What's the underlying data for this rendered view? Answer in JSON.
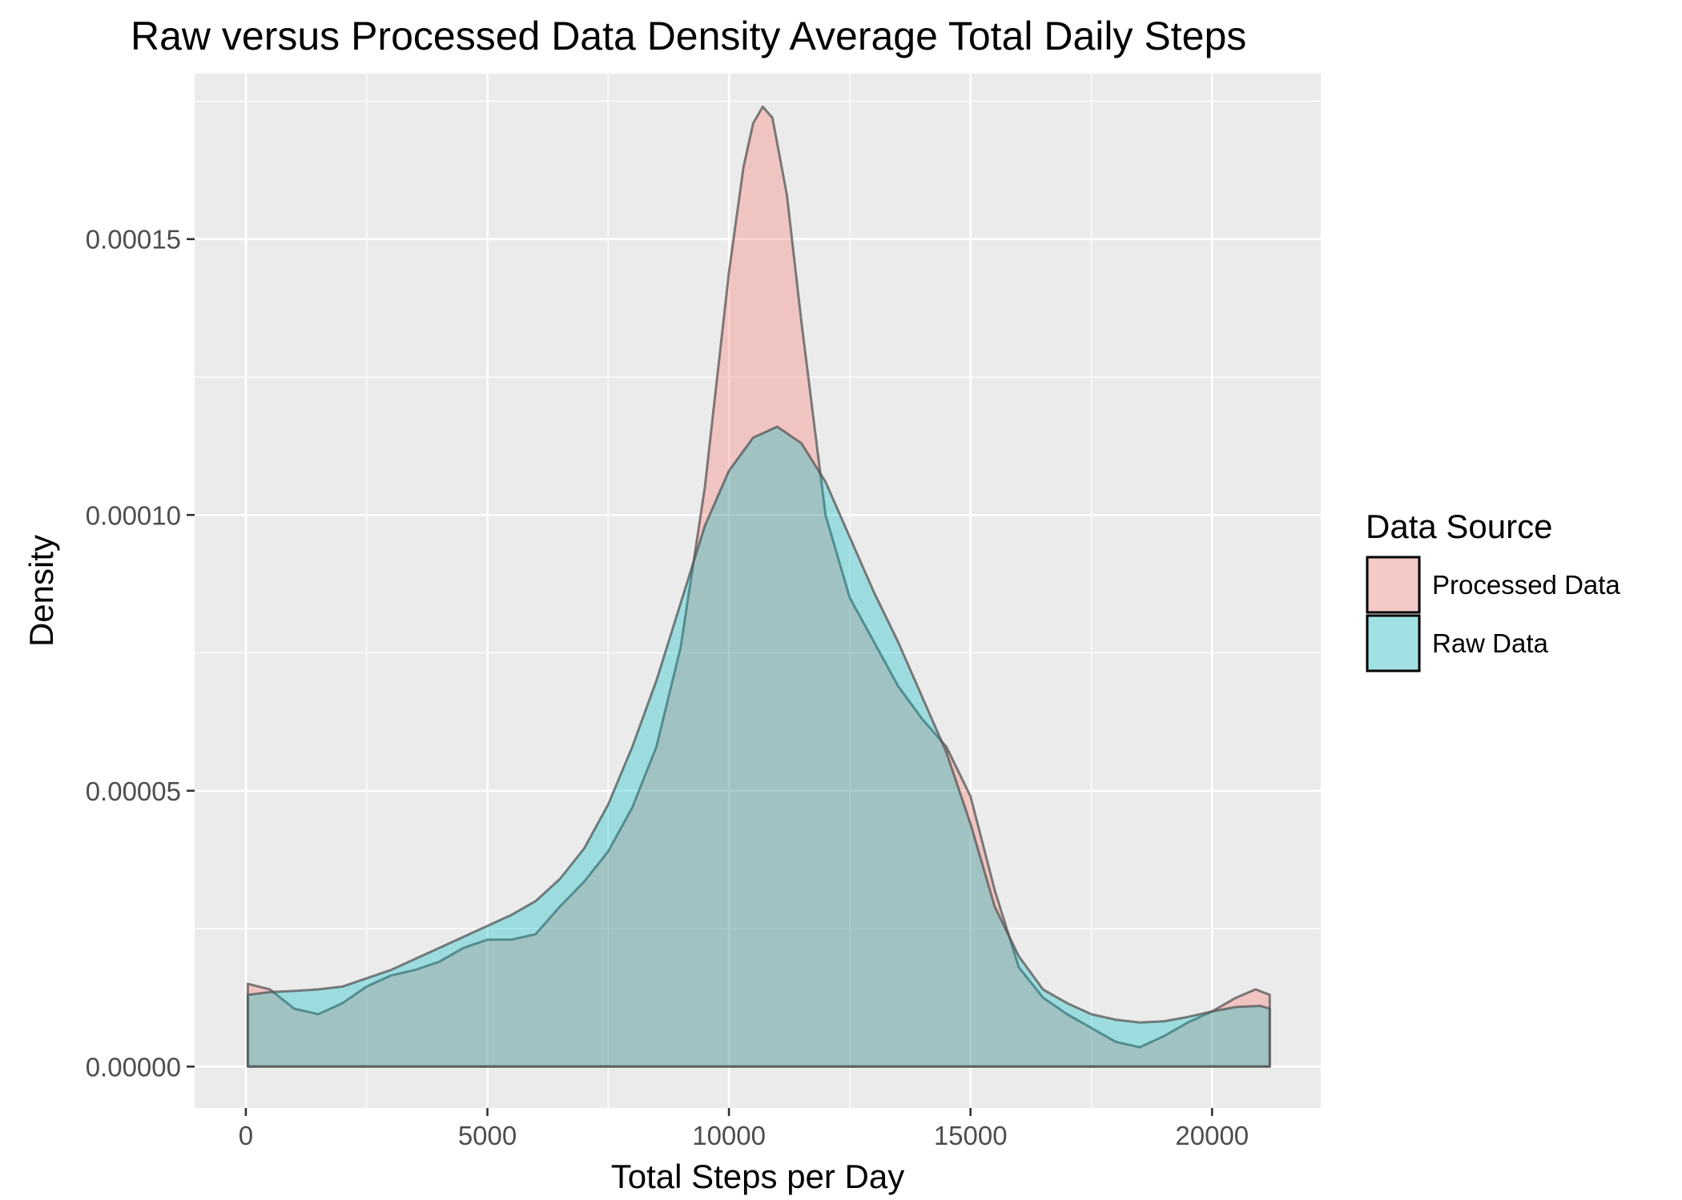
{
  "chart_data": {
    "type": "area",
    "title": "Raw versus Processed Data Density Average Total Daily Steps",
    "xlabel": "Total Steps per Day",
    "ylabel": "Density",
    "xlim": [
      -1060,
      22250
    ],
    "ylim": [
      -7.5e-06,
      0.00018
    ],
    "x_ticks": [
      0,
      5000,
      10000,
      15000,
      20000
    ],
    "x_tick_labels": [
      "0",
      "5000",
      "10000",
      "15000",
      "20000"
    ],
    "y_ticks": [
      0,
      5e-05,
      0.0001,
      0.00015
    ],
    "y_tick_labels": [
      "0.00000",
      "0.00005",
      "0.00010",
      "0.00015"
    ],
    "grid": true,
    "legend": {
      "title": "Data Source",
      "position": "right",
      "entries": [
        "Processed Data",
        "Raw Data"
      ]
    },
    "colors": {
      "panel_bg": "#ebebeb",
      "grid": "#ffffff",
      "processed_fill": "#f8766d",
      "raw_fill": "#00bfc4",
      "outline": "#555555"
    },
    "series": [
      {
        "name": "Processed Data",
        "color": "#f8766d",
        "x": [
          41,
          500,
          1000,
          1500,
          2000,
          2500,
          3000,
          3500,
          4000,
          4500,
          5000,
          5500,
          6000,
          6500,
          7000,
          7500,
          8000,
          8500,
          9000,
          9500,
          10000,
          10300,
          10500,
          10700,
          10900,
          11200,
          11500,
          12000,
          12500,
          13000,
          13500,
          14000,
          14500,
          15000,
          15500,
          16000,
          16500,
          17000,
          17500,
          18000,
          18500,
          19000,
          19500,
          20000,
          20500,
          20900,
          21194
        ],
        "y": [
          1.5e-05,
          1.4e-05,
          1.05e-05,
          9.5e-06,
          1.15e-05,
          1.45e-05,
          1.65e-05,
          1.75e-05,
          1.9e-05,
          2.15e-05,
          2.3e-05,
          2.3e-05,
          2.4e-05,
          2.9e-05,
          3.35e-05,
          3.9e-05,
          4.7e-05,
          5.8e-05,
          7.6e-05,
          0.000105,
          0.000144,
          0.000163,
          0.000171,
          0.000174,
          0.000172,
          0.000158,
          0.000135,
          0.0001,
          8.5e-05,
          7.7e-05,
          6.9e-05,
          6.3e-05,
          5.8e-05,
          4.9e-05,
          3.2e-05,
          1.8e-05,
          1.25e-05,
          9.5e-06,
          7e-06,
          4.5e-06,
          3.5e-06,
          5.5e-06,
          8e-06,
          1e-05,
          1.25e-05,
          1.4e-05,
          1.3e-05
        ]
      },
      {
        "name": "Raw Data",
        "color": "#00bfc4",
        "x": [
          41,
          500,
          1000,
          1500,
          2000,
          2500,
          3000,
          3500,
          4000,
          4500,
          5000,
          5500,
          6000,
          6500,
          7000,
          7500,
          8000,
          8500,
          9000,
          9500,
          10000,
          10500,
          11000,
          11500,
          12000,
          12500,
          13000,
          13500,
          14000,
          14500,
          15000,
          15500,
          16000,
          16500,
          17000,
          17500,
          18000,
          18500,
          19000,
          19500,
          20000,
          20500,
          21000,
          21194
        ],
        "y": [
          1.3e-05,
          1.35e-05,
          1.37e-05,
          1.4e-05,
          1.45e-05,
          1.6e-05,
          1.75e-05,
          1.95e-05,
          2.15e-05,
          2.35e-05,
          2.55e-05,
          2.75e-05,
          3e-05,
          3.4e-05,
          3.95e-05,
          4.75e-05,
          5.8e-05,
          7e-05,
          8.4e-05,
          9.8e-05,
          0.000108,
          0.000114,
          0.000116,
          0.000113,
          0.000106,
          9.6e-05,
          8.6e-05,
          7.7e-05,
          6.7e-05,
          5.7e-05,
          4.4e-05,
          2.9e-05,
          2e-05,
          1.4e-05,
          1.15e-05,
          9.5e-06,
          8.5e-06,
          8e-06,
          8.2e-06,
          9e-06,
          1e-05,
          1.08e-05,
          1.1e-05,
          1.05e-05
        ]
      }
    ]
  }
}
